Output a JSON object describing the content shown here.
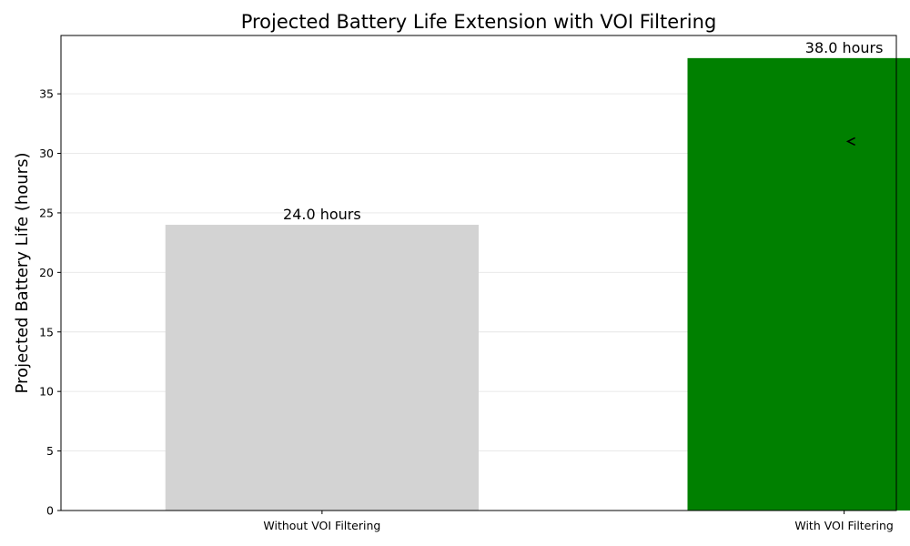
{
  "chart_data": {
    "type": "bar",
    "title": "Projected Battery Life Extension with VOI Filtering",
    "xlabel": "",
    "ylabel": "Projected Battery Life (hours)",
    "categories": [
      "Without VOI Filtering",
      "With VOI Filtering"
    ],
    "values": [
      24.0,
      38.0
    ],
    "data_labels": [
      "24.0 hours",
      "38.0 hours"
    ],
    "bar_colors": [
      "#d3d3d3",
      "#008000"
    ],
    "ylim": [
      0,
      39.9
    ],
    "yticks": [
      0,
      5,
      10,
      15,
      20,
      25,
      30,
      35
    ],
    "grid": "y",
    "legend": "none",
    "annotation_arrow": {
      "x_category": "With VOI Filtering",
      "y_value": 31.0,
      "direction": "left",
      "color": "#000000"
    }
  }
}
